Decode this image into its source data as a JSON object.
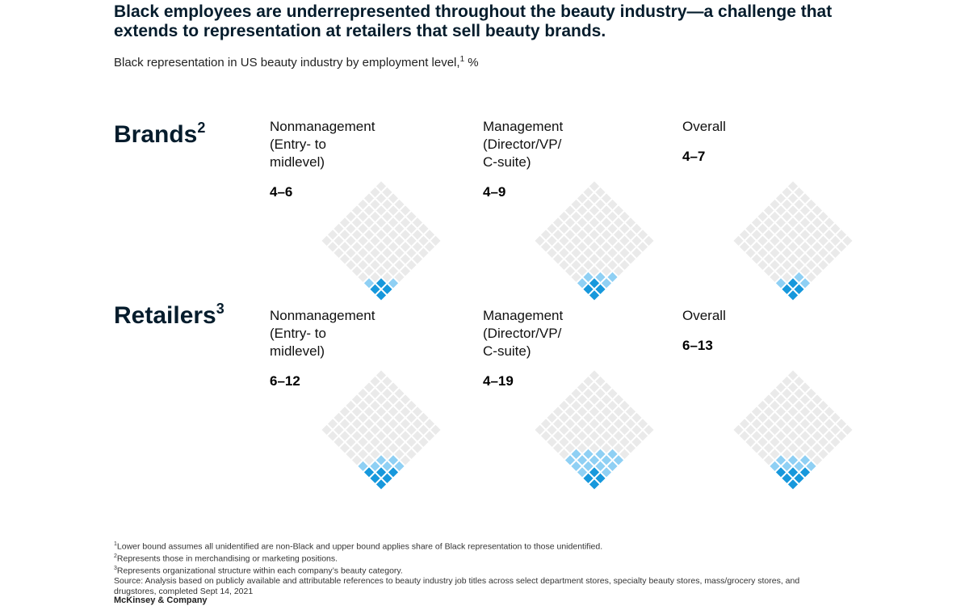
{
  "title": "Black employees are underrepresented throughout the beauty industry—a challenge that extends to representation at retailers that sell beauty brands.",
  "subtitle": "Black representation in US beauty industry by employment level,",
  "subtitle_sup": "1",
  "subtitle_unit": " %",
  "colors": {
    "empty": "#eaeaea",
    "light": "#8fd0f4",
    "dark": "#1798dc",
    "title": "#051c2c"
  },
  "chart_data": {
    "type": "other",
    "encoding": "diamond waffle of 100 squares; dark squares = lower bound, light squares = range up to upper bound",
    "unit": "%",
    "groups": [
      {
        "name": "Brands",
        "sup": "2",
        "cells": [
          {
            "label": "Nonmanagement\n(Entry- to\nmidlevel)",
            "value_text": "4–6",
            "lower": 4,
            "upper": 6
          },
          {
            "label": "Management\n(Director/VP/\nC-suite)",
            "value_text": "4–9",
            "lower": 4,
            "upper": 9
          },
          {
            "label": "Overall",
            "value_text": "4–7",
            "lower": 4,
            "upper": 7
          }
        ]
      },
      {
        "name": "Retailers",
        "sup": "3",
        "cells": [
          {
            "label": "Nonmanagement\n(Entry- to\nmidlevel)",
            "value_text": "6–12",
            "lower": 6,
            "upper": 12
          },
          {
            "label": "Management\n(Director/VP/\nC-suite)",
            "value_text": "4–19",
            "lower": 4,
            "upper": 19
          },
          {
            "label": "Overall",
            "value_text": "6–13",
            "lower": 6,
            "upper": 13
          }
        ]
      }
    ]
  },
  "footnotes": [
    {
      "sup": "1",
      "text": "Lower bound assumes all unidentified are non-Black and upper bound applies share of Black representation to those unidentified."
    },
    {
      "sup": "2",
      "text": "Represents those in merchandising or marketing positions."
    },
    {
      "sup": "3",
      "text": "Represents organizational structure within each company’s beauty category."
    },
    {
      "sup": "",
      "text": "Source: Analysis based on publicly available and attributable references to beauty industry job titles across select department stores, specialty beauty stores, mass/grocery stores, and drugstores, completed Sept 14, 2021"
    }
  ],
  "source_brand": "McKinsey & Company"
}
